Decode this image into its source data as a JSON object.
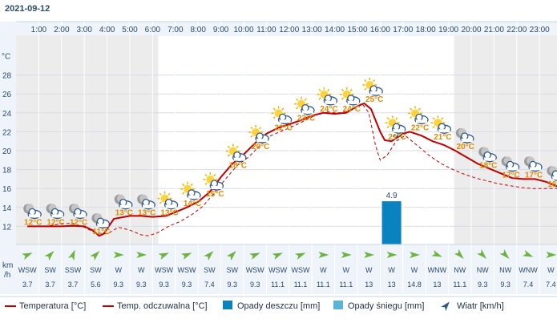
{
  "date": "2021-09-12",
  "y_unit": "°C",
  "wind_unit_top": "km",
  "wind_unit_bottom": "/h",
  "chart_data": {
    "type": "line",
    "x": [
      "1:00",
      "2:00",
      "3:00",
      "4:00",
      "5:00",
      "6:00",
      "7:00",
      "8:00",
      "9:00",
      "10:00",
      "11:00",
      "12:00",
      "13:00",
      "14:00",
      "15:00",
      "16:00",
      "17:00",
      "18:00",
      "19:00",
      "20:00",
      "21:00",
      "22:00",
      "23:00"
    ],
    "y_ticks": [
      12,
      14,
      16,
      18,
      20,
      22,
      24,
      26,
      28
    ],
    "ylim": [
      10,
      29
    ],
    "series": [
      {
        "name": "Temperatura [°C]",
        "color": "#c00000",
        "values": [
          [
            0.5,
            12.0
          ],
          [
            1,
            12.0
          ],
          [
            1.5,
            12.0
          ],
          [
            2,
            12.0
          ],
          [
            2.5,
            12.05
          ],
          [
            3,
            12.0
          ],
          [
            3.35,
            11.6
          ],
          [
            3.65,
            11.0
          ],
          [
            3.85,
            11.2
          ],
          [
            4.3,
            12.8
          ],
          [
            5,
            13.1
          ],
          [
            5.5,
            13.1
          ],
          [
            6,
            13.0
          ],
          [
            6.6,
            13.1
          ],
          [
            7,
            13.5
          ],
          [
            7.5,
            14.0
          ],
          [
            8,
            14.6
          ],
          [
            8.5,
            15.6
          ],
          [
            9,
            17.2
          ],
          [
            9.5,
            18.6
          ],
          [
            10,
            19.6
          ],
          [
            10.5,
            20.8
          ],
          [
            11,
            21.8
          ],
          [
            11.5,
            22.4
          ],
          [
            12,
            22.8
          ],
          [
            12.5,
            23.2
          ],
          [
            13,
            23.7
          ],
          [
            13.5,
            24.0
          ],
          [
            14,
            23.9
          ],
          [
            14.5,
            24.0
          ],
          [
            15,
            24.7
          ],
          [
            15.3,
            25.0
          ],
          [
            15.6,
            24.4
          ],
          [
            16,
            22.0
          ],
          [
            16.2,
            21.1
          ],
          [
            16.5,
            21.0
          ],
          [
            17,
            21.8
          ],
          [
            17.3,
            22.0
          ],
          [
            17.8,
            21.6
          ],
          [
            18.3,
            21.0
          ],
          [
            18.8,
            20.6
          ],
          [
            19.3,
            20.0
          ],
          [
            19.8,
            19.3
          ],
          [
            20.3,
            18.6
          ],
          [
            20.8,
            18.1
          ],
          [
            21.3,
            17.6
          ],
          [
            21.8,
            17.1
          ],
          [
            22.3,
            17.0
          ],
          [
            22.8,
            17.0
          ],
          [
            23.3,
            16.7
          ],
          [
            23.7,
            16.3
          ],
          [
            24,
            16.0
          ]
        ]
      },
      {
        "name": "Temp. odczuwalna [°C]",
        "color": "#c00000",
        "dashed": true,
        "values": [
          [
            0.5,
            12.0
          ],
          [
            1,
            12.0
          ],
          [
            1.5,
            12.05
          ],
          [
            2,
            12.3
          ],
          [
            2.5,
            12.3
          ],
          [
            3,
            11.9
          ],
          [
            3.5,
            11.3
          ],
          [
            4,
            11.2
          ],
          [
            4.5,
            11.9
          ],
          [
            5,
            11.6
          ],
          [
            5.5,
            11.1
          ],
          [
            5.8,
            11.0
          ],
          [
            6.2,
            11.3
          ],
          [
            6.7,
            12.0
          ],
          [
            7.2,
            12.5
          ],
          [
            7.7,
            13.2
          ],
          [
            8.2,
            14.1
          ],
          [
            8.7,
            15.5
          ],
          [
            9.2,
            17.0
          ],
          [
            9.7,
            18.4
          ],
          [
            10.2,
            19.3
          ],
          [
            10.7,
            20.5
          ],
          [
            11.2,
            21.6
          ],
          [
            11.7,
            22.1
          ],
          [
            12.2,
            22.6
          ],
          [
            12.7,
            23.2
          ],
          [
            13.2,
            23.8
          ],
          [
            13.7,
            24.1
          ],
          [
            14.2,
            24.0
          ],
          [
            14.7,
            24.3
          ],
          [
            15.2,
            25.0
          ],
          [
            15.5,
            24.0
          ],
          [
            15.8,
            20.5
          ],
          [
            16,
            19.0
          ],
          [
            16.3,
            19.5
          ],
          [
            16.7,
            21.0
          ],
          [
            17.1,
            21.6
          ],
          [
            17.6,
            20.6
          ],
          [
            18.2,
            19.4
          ],
          [
            18.7,
            18.6
          ],
          [
            19.2,
            18.0
          ],
          [
            19.7,
            17.5
          ],
          [
            20.2,
            17.1
          ],
          [
            20.7,
            16.8
          ],
          [
            21.2,
            16.5
          ],
          [
            21.7,
            16.3
          ],
          [
            22.2,
            16.1
          ],
          [
            22.7,
            16.0
          ],
          [
            23.2,
            16.0
          ],
          [
            23.7,
            16.0
          ],
          [
            24,
            16.0
          ]
        ]
      }
    ],
    "temp_labels": [
      "12°C",
      "12°C",
      "12°C",
      "11°C",
      "13°C",
      "13°C",
      "13°C",
      "14°C",
      "15°C",
      "18°C",
      "20°C",
      "22°C",
      "23°C",
      "24°C",
      "24°C",
      "25°C",
      "21°C",
      "22°C",
      "21°C",
      "20°C",
      "18°C",
      "17°C",
      "17°C",
      "16°C"
    ],
    "label_y": [
      12,
      12,
      12,
      11,
      13,
      13,
      13,
      14,
      15,
      18,
      20,
      22,
      23,
      24,
      24,
      25,
      21,
      22,
      21,
      20,
      18,
      17,
      17,
      16
    ],
    "weather_icons": [
      "moon-cloud",
      "moon-cloud",
      "moon-cloud",
      "moon-cloud",
      "moon-cloud",
      "moon-cloud",
      "sun-cloud",
      "sun-cloud",
      "sun-cloud",
      "sun-cloud",
      "sun-cloud",
      "sun-cloud",
      "sun-cloud",
      "sun-cloud",
      "sun-cloud",
      "sun-cloud",
      "rain-cloud",
      "sun-cloud",
      "sun-cloud",
      "moon-cloud",
      "moon-cloud",
      "moon-cloud",
      "moon-cloud",
      "moon-cloud"
    ],
    "rain": [
      {
        "hour_index": 16,
        "value": 4.9,
        "label": "4.9"
      }
    ],
    "wind_dir": [
      "WSW",
      "SW",
      "SSW",
      "SW",
      "W",
      "W",
      "WSW",
      "WSW",
      "SW",
      "SW",
      "WSW",
      "WSW",
      "WSW",
      "W",
      "W",
      "W",
      "W",
      "W",
      "WNW",
      "NW",
      "NW",
      "NW",
      "WNW",
      "W"
    ],
    "wind_speed": [
      "3.7",
      "3.7",
      "3.7",
      "5.6",
      "9.3",
      "9.3",
      "9.3",
      "9.3",
      "7.4",
      "9.3",
      "9.3",
      "11.1",
      "11.1",
      "11.1",
      "11.1",
      "13",
      "13",
      "14.8",
      "13",
      "11.1",
      "9.3",
      "9.3",
      "7.4",
      "7.4"
    ],
    "wind_arrow_deg": [
      247.5,
      225,
      202.5,
      225,
      270,
      270,
      247.5,
      247.5,
      225,
      225,
      247.5,
      247.5,
      247.5,
      270,
      270,
      270,
      270,
      270,
      292.5,
      315,
      315,
      315,
      292.5,
      270
    ],
    "colors": {
      "temp": "#c00000",
      "rain": "#0a82c0",
      "snow": "#5ab4d6",
      "wind": "#2d5a8c",
      "night": "#ececec",
      "label": "#e08a00"
    },
    "legend": [
      {
        "kind": "line",
        "label": "Temperatura [°C]"
      },
      {
        "kind": "line",
        "label": "Temp. odczuwalna [°C]"
      },
      {
        "kind": "box",
        "label": "Opady deszczu [mm]",
        "color": "#0a82c0"
      },
      {
        "kind": "box",
        "label": "Opady śniegu [mm]",
        "color": "#5ab4d6"
      },
      {
        "kind": "arrow",
        "label": "Wiatr [km/h]"
      }
    ]
  }
}
